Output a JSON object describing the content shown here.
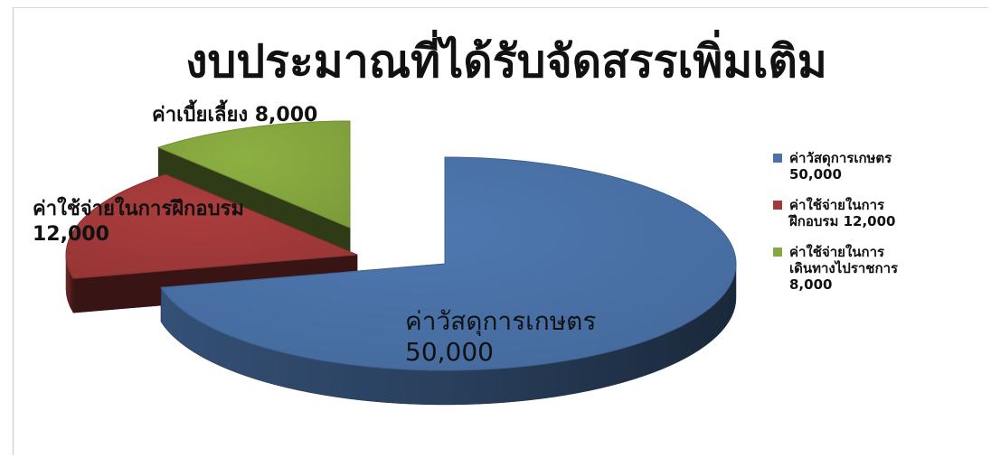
{
  "chart_data": {
    "type": "pie",
    "title": "งบประมาณที่ได้รับจัดสรรเพิ่มเติม",
    "legend_position": "right",
    "slices": [
      {
        "label": "ค่าวัสดุการเกษตร",
        "value": 50000,
        "value_text": "50,000",
        "color": "#4a72a8",
        "data_label_lines": [
          "ค่าวัสดุการเกษตร",
          "50,000"
        ],
        "legend_lines": [
          "ค่าวัสดุการเกษตร",
          "50,000"
        ]
      },
      {
        "label": "ค่าใช้จ่ายในการฝึกอบรม",
        "value": 12000,
        "value_text": "12,000",
        "color": "#a33a3a",
        "data_label_lines": [
          "ค่าใช้จ่ายในการฝึกอบรม",
          "12,000"
        ],
        "legend_lines": [
          "ค่าใช้จ่ายในการ",
          "ฝึกอบรม 12,000"
        ]
      },
      {
        "label": "ค่าใช้จ่ายในการเดินทางไปราชการ",
        "value": 8000,
        "value_text": "8,000",
        "color": "#86a83f",
        "data_label_lines": [
          "ค่าเบี้ยเลี้ยง 8,000"
        ],
        "legend_lines": [
          "ค่าใช้จ่ายในการ",
          "เดินทางไปราชการ",
          "8,000"
        ]
      }
    ]
  }
}
